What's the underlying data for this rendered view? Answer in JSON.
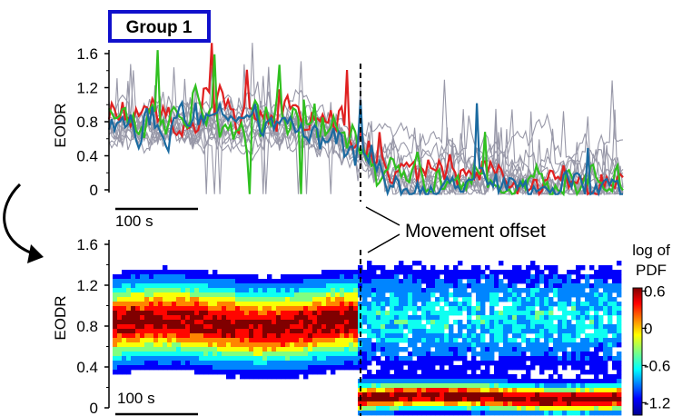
{
  "figure": {
    "group_label": "Group 1",
    "annotation": "Movement offset",
    "colors": {
      "group_box": "#1010cc",
      "highlight_red": "#e02020",
      "highlight_green": "#30c020",
      "highlight_blue": "#1a6aa0",
      "background_traces": "#9898a8"
    }
  },
  "chart_data": [
    {
      "type": "line",
      "panel": "top",
      "ylabel": "EODR",
      "xlabel": "",
      "ylim": [
        -0.1,
        1.85
      ],
      "yticks": [
        "0",
        "0.4",
        "0.8",
        "1.2",
        "1.6"
      ],
      "scalebar_label": "100 s",
      "movement_offset_fraction": 0.49,
      "grid": false,
      "series": [
        {
          "role": "highlight",
          "color": "#e02020",
          "pre_mean": 0.92,
          "post_mean": 0.18
        },
        {
          "role": "highlight",
          "color": "#30c020",
          "pre_mean": 0.85,
          "post_mean": 0.15
        },
        {
          "role": "highlight",
          "color": "#1a6aa0",
          "pre_mean": 0.78,
          "post_mean": 0.08
        },
        {
          "role": "background",
          "color": "#9898a8",
          "count": 14,
          "pre_mean": 0.8,
          "post_mean": 0.15
        }
      ]
    },
    {
      "type": "heatmap",
      "panel": "bottom",
      "ylabel": "EODR",
      "xlabel": "",
      "ylim": [
        -0.05,
        1.7
      ],
      "yticks": [
        "0",
        "0.4",
        "0.8",
        "1.2",
        "1.6"
      ],
      "scalebar_label": "100 s",
      "colorbar": {
        "title_line1": "log of",
        "title_line2": "PDF",
        "ticks": [
          "0.6",
          "0",
          "-0.6",
          "-1.2"
        ],
        "range": [
          -1.4,
          0.65
        ]
      },
      "density_center_pre": 0.85,
      "density_center_post": 0.12
    }
  ]
}
